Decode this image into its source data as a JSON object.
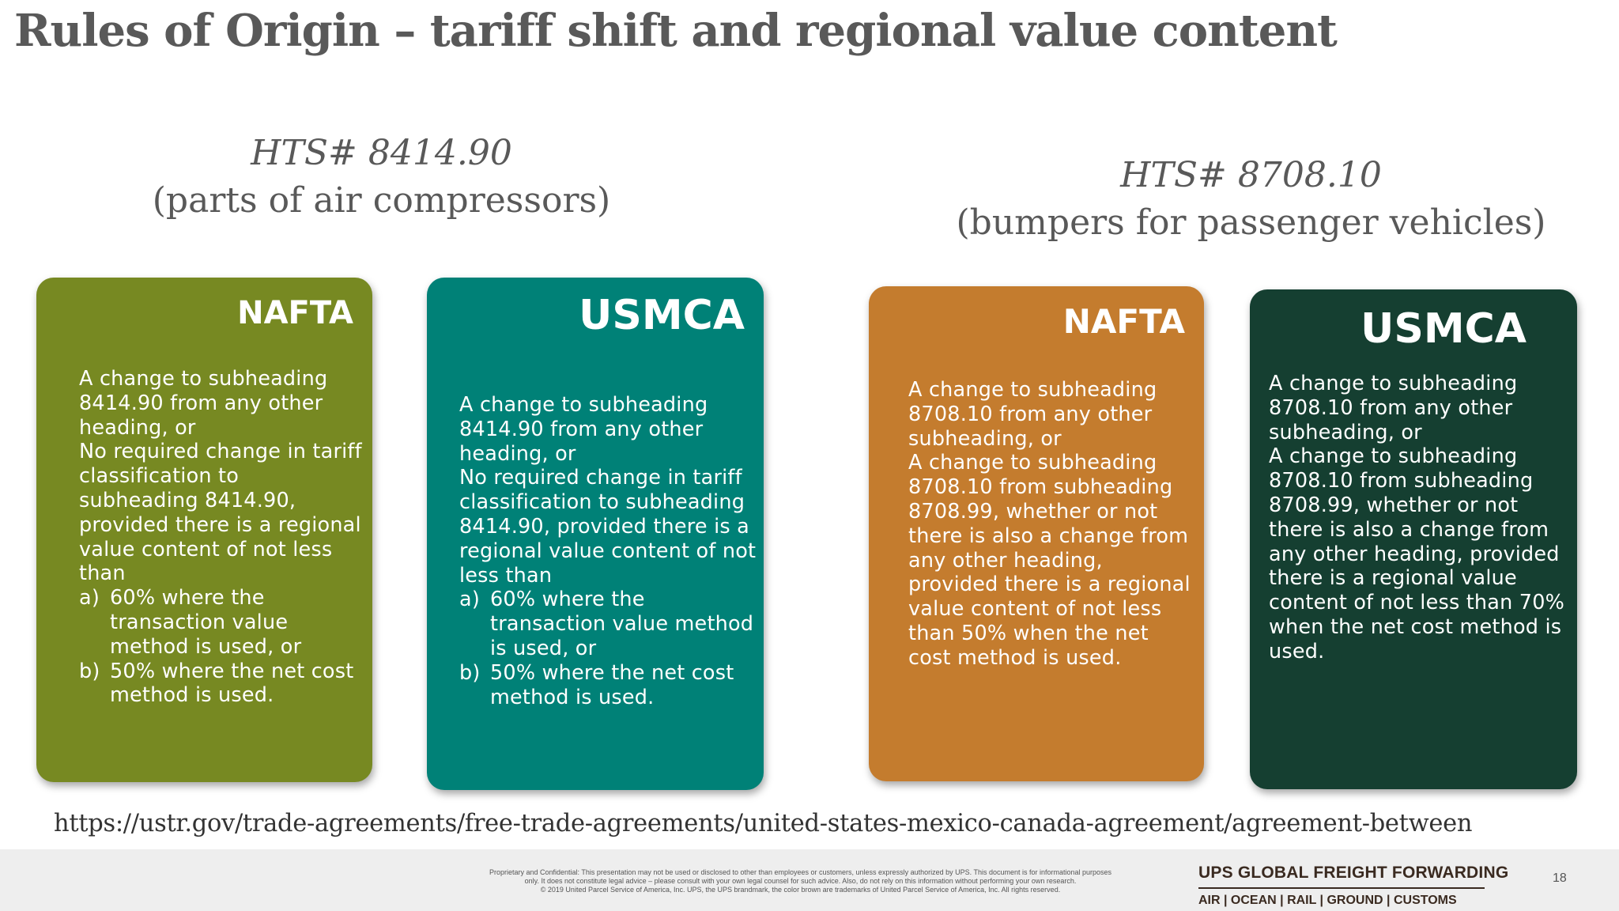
{
  "slide": {
    "title": "Rules of Origin – tariff shift and regional value content",
    "source_url": "https://ustr.gov/trade-agreements/free-trade-agreements/united-states-mexico-canada-agreement/agreement-between"
  },
  "hts_left": {
    "number": "HTS# 8414.90",
    "description": "(parts of air compressors)"
  },
  "hts_right": {
    "number": "HTS# 8708.10",
    "description": "(bumpers for passenger vehicles)"
  },
  "cards": [
    {
      "title": "NAFTA",
      "color": "#778922",
      "paragraphs": [
        "A change to subheading 8414.90 from any other heading, or",
        "No required change in tariff classification to subheading 8414.90, provided there is a regional value content of not less than"
      ],
      "items": [
        {
          "marker": "a)",
          "text": "60% where the transaction value method is used, or"
        },
        {
          "marker": "b)",
          "text": "50% where the net cost method is used."
        }
      ]
    },
    {
      "title": "USMCA",
      "color": "#008177",
      "paragraphs": [
        "A change to subheading 8414.90 from any other heading, or",
        "No required change in tariff classification to subheading 8414.90, provided there is a regional value content of not less than"
      ],
      "items": [
        {
          "marker": "a)",
          "text": "60% where the transaction value method is used, or"
        },
        {
          "marker": "b)",
          "text": "50% where the net cost method is used."
        }
      ]
    },
    {
      "title": "NAFTA",
      "color": "#c47c2e",
      "paragraphs": [
        "A change to subheading 8708.10 from any other subheading, or",
        "A change to subheading 8708.10 from subheading 8708.99, whether or not there is also a change from any other heading, provided there is a regional value content of not less than 50% when the net cost method is used."
      ]
    },
    {
      "title": "USMCA",
      "color": "#153f31",
      "paragraphs": [
        "A change to subheading 8708.10 from any other subheading, or",
        "A change to subheading 8708.10 from subheading 8708.99, whether or not there is also a change from any other heading, provided there is a regional value content of not less than 70% when the net cost method is used."
      ]
    }
  ],
  "footer": {
    "legal_lines": [
      "Proprietary and Confidential: This presentation may not be used or disclosed to other than employees or customers, unless expressly authorized by UPS. This document is for informational purposes",
      "only.  It does not constitute legal advice – please consult with your own legal counsel for such advice.  Also, do not rely on this information without performing your own research.",
      "© 2019 United Parcel Service of America, Inc. UPS, the UPS brandmark, the color brown are trademarks of United Parcel Service of America, Inc. All rights reserved."
    ],
    "brand_name": "UPS GLOBAL FREIGHT FORWARDING",
    "brand_modes": "AIR | OCEAN | RAIL | GROUND | CUSTOMS",
    "page_number": "18"
  }
}
